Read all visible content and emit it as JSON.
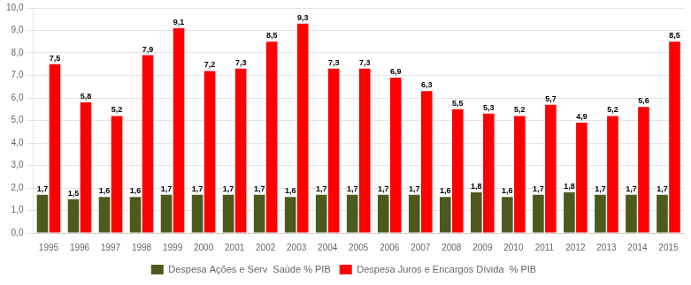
{
  "chart_data": {
    "type": "bar",
    "categories": [
      "1995",
      "1996",
      "1997",
      "1998",
      "1999",
      "2000",
      "2001",
      "2002",
      "2003",
      "2004",
      "2005",
      "2006",
      "2007",
      "2008",
      "2009",
      "2010",
      "2011",
      "2012",
      "2013",
      "2014",
      "2015"
    ],
    "series": [
      {
        "name": "Despesa Ações e Serv  Saúde % PIB",
        "color": "#4d5a1e",
        "values": [
          1.7,
          1.5,
          1.6,
          1.6,
          1.7,
          1.7,
          1.7,
          1.7,
          1.6,
          1.7,
          1.7,
          1.7,
          1.7,
          1.6,
          1.8,
          1.6,
          1.7,
          1.8,
          1.7,
          1.7,
          1.7
        ],
        "value_labels": [
          "1,7",
          "1,5",
          "1,6",
          "1,6",
          "1,7",
          "1,7",
          "1,7",
          "1,7",
          "1,6",
          "1,7",
          "1,7",
          "1,7",
          "1,7",
          "1,6",
          "1,8",
          "1,6",
          "1,7",
          "1,8",
          "1,7",
          "1,7",
          "1,7"
        ]
      },
      {
        "name": "Despesa Juros e Encargos Dívida  % PIB",
        "color": "#ff0000",
        "values": [
          7.5,
          5.8,
          5.2,
          7.9,
          9.1,
          7.2,
          7.3,
          8.5,
          9.3,
          7.3,
          7.3,
          6.9,
          6.3,
          5.5,
          5.3,
          5.2,
          5.7,
          4.9,
          5.2,
          5.6,
          8.5
        ],
        "value_labels": [
          "7,5",
          "5,8",
          "5,2",
          "7,9",
          "9,1",
          "7,2",
          "7,3",
          "8,5",
          "9,3",
          "7,3",
          "7,3",
          "6,9",
          "6,3",
          "5,5",
          "5,3",
          "5,2",
          "5,7",
          "4,9",
          "5,2",
          "5,6",
          "8,5"
        ]
      }
    ],
    "ylim": [
      0.0,
      10.0
    ],
    "yticks": [
      {
        "value": 0.0,
        "label": "0,0"
      },
      {
        "value": 1.0,
        "label": "1,0"
      },
      {
        "value": 2.0,
        "label": "2,0"
      },
      {
        "value": 3.0,
        "label": "3,0"
      },
      {
        "value": 4.0,
        "label": "4,0"
      },
      {
        "value": 5.0,
        "label": "5,0"
      },
      {
        "value": 6.0,
        "label": "6,0"
      },
      {
        "value": 7.0,
        "label": "7,0"
      },
      {
        "value": 8.0,
        "label": "8,0"
      },
      {
        "value": 9.0,
        "label": "9,0"
      },
      {
        "value": 10.0,
        "label": "10,0"
      }
    ],
    "grid": true,
    "legend": "bottom",
    "data_labels": true
  }
}
